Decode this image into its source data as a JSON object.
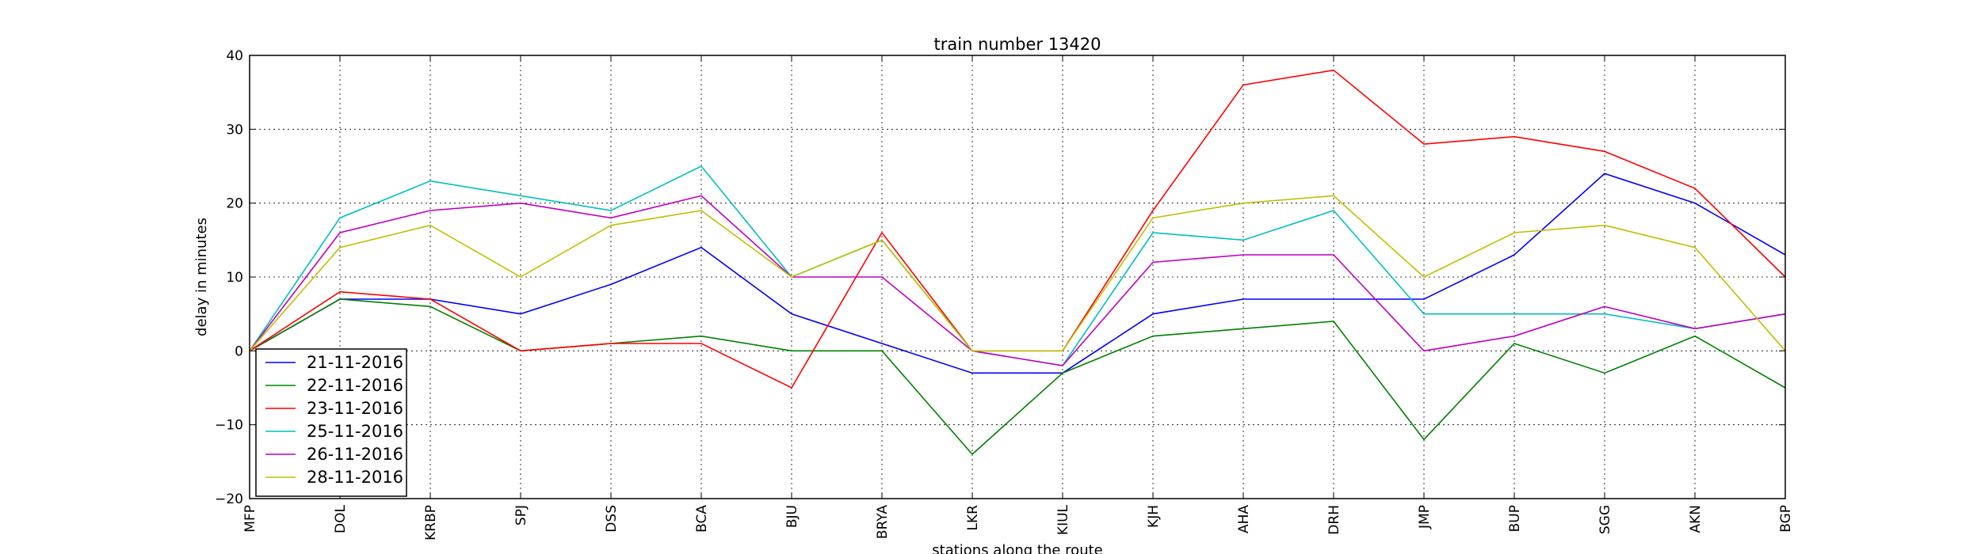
{
  "chart_data": {
    "type": "line",
    "title": "train number 13420",
    "xlabel": "stations along the route",
    "ylabel": "delay in minutes",
    "categories": [
      "MFP",
      "DOL",
      "KRBP",
      "SPJ",
      "DSS",
      "BCA",
      "BJU",
      "BRYA",
      "LKR",
      "KIUL",
      "KJH",
      "AHA",
      "DRH",
      "JMP",
      "BUP",
      "SGG",
      "AKN",
      "BGP"
    ],
    "ylim": [
      -20,
      40
    ],
    "yticks": [
      "40",
      "30",
      "20",
      "10",
      "0",
      "−10",
      "−20"
    ],
    "grid": true,
    "legend_position": "lower-left",
    "series": [
      {
        "name": "21-11-2016",
        "color": "#0000ff",
        "values": [
          0,
          7,
          7,
          5,
          9,
          14,
          5,
          1,
          -3,
          -3,
          5,
          7,
          7,
          7,
          13,
          24,
          20,
          13
        ]
      },
      {
        "name": "22-11-2016",
        "color": "#008000",
        "values": [
          0,
          7,
          6,
          0,
          1,
          2,
          0,
          0,
          -14,
          -3,
          2,
          3,
          4,
          -12,
          1,
          -3,
          2,
          -5
        ]
      },
      {
        "name": "23-11-2016",
        "color": "#ff0000",
        "values": [
          0,
          8,
          7,
          0,
          1,
          1,
          -5,
          16,
          0,
          0,
          19,
          36,
          38,
          28,
          29,
          27,
          22,
          10
        ]
      },
      {
        "name": "25-11-2016",
        "color": "#00bfbf",
        "values": [
          0,
          18,
          23,
          21,
          19,
          25,
          10,
          15,
          0,
          -2,
          16,
          15,
          19,
          5,
          5,
          5,
          3,
          5
        ]
      },
      {
        "name": "26-11-2016",
        "color": "#bf00bf",
        "values": [
          0,
          16,
          19,
          20,
          18,
          21,
          10,
          10,
          0,
          -2,
          12,
          13,
          13,
          0,
          2,
          6,
          3,
          5
        ]
      },
      {
        "name": "28-11-2016",
        "color": "#bfbf00",
        "values": [
          0,
          14,
          17,
          10,
          17,
          19,
          10,
          15,
          0,
          0,
          18,
          20,
          21,
          10,
          16,
          17,
          14,
          0
        ]
      }
    ]
  }
}
